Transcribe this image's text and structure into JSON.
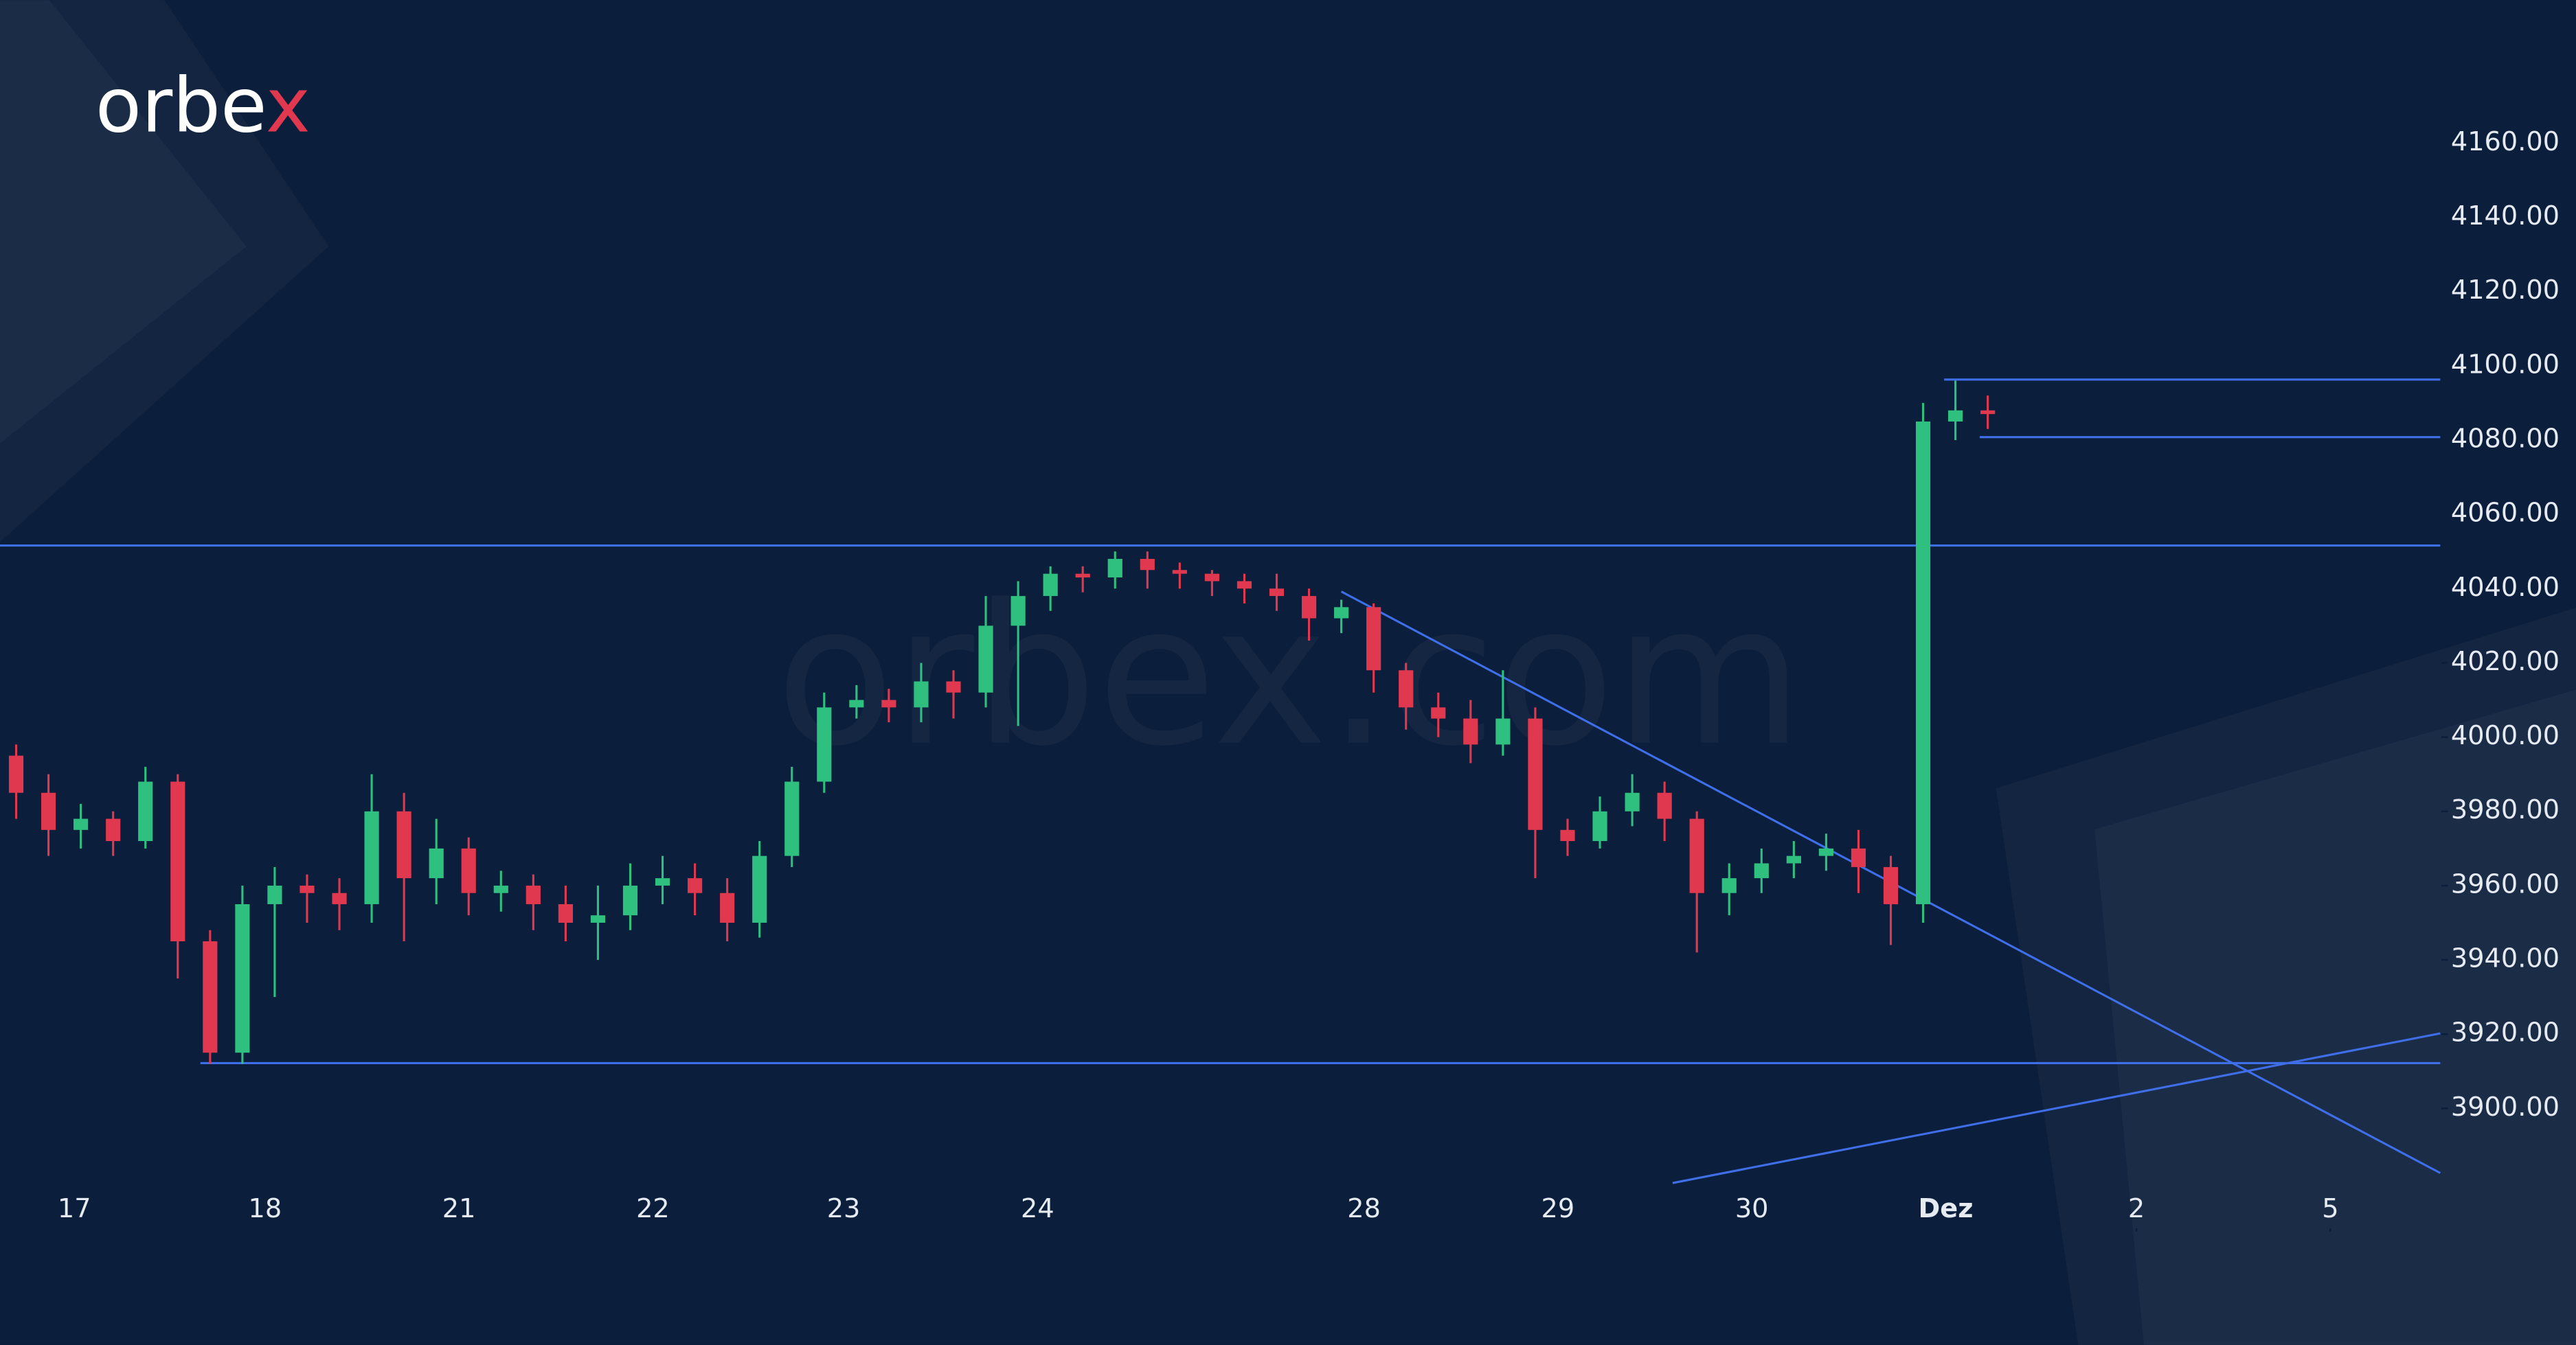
{
  "chart_data": {
    "type": "candlestick",
    "logo": "orbex",
    "watermark": "orbex.com",
    "up_color": "#2fbf7f",
    "down_color": "#e0394f",
    "x": [
      0.5,
      1.5,
      2.5,
      3.5,
      4.5,
      5.5,
      6.5,
      7.5,
      8.5,
      9.5,
      10.5,
      11.5,
      12.5,
      13.5,
      14.5,
      15.5,
      16.5,
      17.5,
      18.5,
      19.5,
      20.5,
      21.5,
      22.5,
      23.5,
      24.5,
      25.5,
      26.5,
      27.5,
      28.5,
      29.5,
      30.5,
      31.5,
      32.5,
      33.5,
      34.5,
      35.5,
      36.5,
      37.5,
      38.5,
      39.5,
      40.5,
      41.5,
      42.5,
      43.5,
      44.5,
      45.5,
      46.5,
      47.5,
      48.5,
      49.5,
      50.5,
      51.5,
      52.5,
      53.5,
      54.5,
      55.5,
      56.5,
      57.5,
      58.5,
      59.5,
      60.5,
      61.5
    ],
    "open": [
      3995,
      3985,
      3975,
      3978,
      3972,
      3988,
      3945,
      3915,
      3955,
      3960,
      3958,
      3955,
      3980,
      3962,
      3970,
      3958,
      3960,
      3955,
      3950,
      3952,
      3960,
      3962,
      3958,
      3950,
      3968,
      3988,
      4008,
      4010,
      4008,
      4015,
      4012,
      4030,
      4038,
      4044,
      4043,
      4048,
      4045,
      4044,
      4042,
      4040,
      4038,
      4032,
      4035,
      4018,
      4008,
      4005,
      3998,
      4005,
      3975,
      3972,
      3980,
      3985,
      3978,
      3958,
      3962,
      3966,
      3968,
      3970,
      3965,
      3955,
      4085,
      4088
    ],
    "high": [
      3998,
      3990,
      3982,
      3980,
      3992,
      3990,
      3948,
      3960,
      3965,
      3963,
      3962,
      3990,
      3985,
      3978,
      3973,
      3964,
      3963,
      3960,
      3960,
      3966,
      3968,
      3966,
      3962,
      3972,
      3992,
      4012,
      4014,
      4013,
      4020,
      4018,
      4038,
      4042,
      4046,
      4046,
      4050,
      4050,
      4047,
      4045,
      4044,
      4044,
      4040,
      4037,
      4036,
      4020,
      4012,
      4010,
      4018,
      4008,
      3978,
      3984,
      3990,
      3988,
      3980,
      3966,
      3970,
      3972,
      3974,
      3975,
      3968,
      4090,
      4096,
      4092
    ],
    "low": [
      3978,
      3968,
      3970,
      3968,
      3970,
      3935,
      3912,
      3912,
      3930,
      3950,
      3948,
      3950,
      3945,
      3955,
      3952,
      3953,
      3948,
      3945,
      3940,
      3948,
      3955,
      3952,
      3945,
      3946,
      3965,
      3985,
      4005,
      4004,
      4004,
      4005,
      4008,
      4003,
      4034,
      4039,
      4040,
      4040,
      4040,
      4038,
      4036,
      4034,
      4026,
      4028,
      4012,
      4002,
      4000,
      3993,
      3995,
      3962,
      3968,
      3970,
      3976,
      3972,
      3942,
      3952,
      3958,
      3962,
      3964,
      3958,
      3944,
      3950,
      4080,
      4083
    ],
    "close": [
      3985,
      3975,
      3978,
      3972,
      3988,
      3945,
      3915,
      3955,
      3960,
      3958,
      3955,
      3980,
      3962,
      3970,
      3958,
      3960,
      3955,
      3950,
      3952,
      3960,
      3962,
      3958,
      3950,
      3968,
      3988,
      4008,
      4010,
      4008,
      4015,
      4012,
      4030,
      4038,
      4044,
      4043,
      4048,
      4045,
      4044,
      4042,
      4040,
      4038,
      4032,
      4035,
      4018,
      4008,
      4005,
      3998,
      4005,
      3975,
      3972,
      3980,
      3985,
      3978,
      3958,
      3962,
      3966,
      3968,
      3970,
      3965,
      3955,
      4085,
      4088,
      4087
    ],
    "xlim": [
      0,
      79.7
    ],
    "ylim": [
      3836.3,
      4198.5
    ],
    "xticks": [
      {
        "value": 2.3,
        "label": "17"
      },
      {
        "value": 8.2,
        "label": "18"
      },
      {
        "value": 14.2,
        "label": "21"
      },
      {
        "value": 20.2,
        "label": "22"
      },
      {
        "value": 26.1,
        "label": "23"
      },
      {
        "value": 32.1,
        "label": "24"
      },
      {
        "value": 42.2,
        "label": "28"
      },
      {
        "value": 48.2,
        "label": "29"
      },
      {
        "value": 54.2,
        "label": "30"
      },
      {
        "value": 60.2,
        "label": "Dez"
      },
      {
        "value": 66.1,
        "label": "2"
      },
      {
        "value": 72.1,
        "label": "5"
      }
    ],
    "yticks": [
      {
        "value": 3900,
        "label": "3900.00"
      },
      {
        "value": 3920,
        "label": "3920.00"
      },
      {
        "value": 3940,
        "label": "3940.00"
      },
      {
        "value": 3960,
        "label": "3960.00"
      },
      {
        "value": 3980,
        "label": "3980.00"
      },
      {
        "value": 4000,
        "label": "4000.00"
      },
      {
        "value": 4020,
        "label": "4020.00"
      },
      {
        "value": 4040,
        "label": "4040.00"
      },
      {
        "value": 4060,
        "label": "4060.00"
      },
      {
        "value": 4080,
        "label": "4080.00"
      },
      {
        "value": 4100,
        "label": "4100.00"
      },
      {
        "value": 4120,
        "label": "4120.00"
      },
      {
        "value": 4140,
        "label": "4140.00"
      },
      {
        "value": 4160,
        "label": "4160.00"
      }
    ],
    "line_color": "#3f6fe8",
    "lines": [
      {
        "x": [
          0,
          75.5
        ],
        "y": [
          4051.6,
          4051.6
        ]
      },
      {
        "x": [
          6.2,
          75.5
        ],
        "y": [
          3912.2,
          3912.2
        ]
      },
      {
        "x": [
          60.15,
          75.5
        ],
        "y": [
          4096.3,
          4096.3
        ]
      },
      {
        "x": [
          61.25,
          75.5
        ],
        "y": [
          4080.8,
          4080.8
        ]
      },
      {
        "x": [
          41.5,
          75.5
        ],
        "y": [
          4039.2,
          3882.6
        ]
      },
      {
        "x": [
          51.75,
          75.5
        ],
        "y": [
          3879.9,
          3920.2
        ]
      }
    ]
  }
}
